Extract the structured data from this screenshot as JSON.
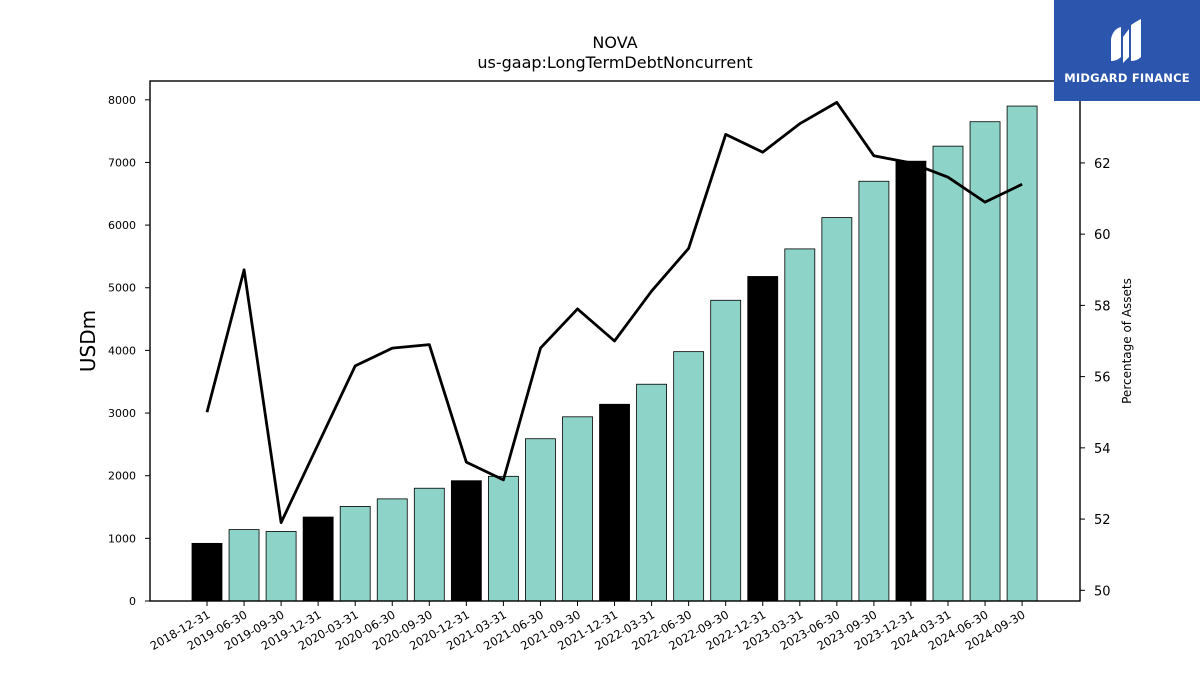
{
  "chart_data": {
    "type": "bar",
    "title": "NOVA",
    "subtitle": "us-gaap:LongTermDebtNoncurrent",
    "ylabel": "USDm",
    "ylabel_right": "Percentage of Assets",
    "ylim": [
      0,
      8300
    ],
    "ylim_right": [
      49.7,
      64.3
    ],
    "yticks": [
      0,
      1000,
      2000,
      3000,
      4000,
      5000,
      6000,
      7000,
      8000
    ],
    "yticks_right": [
      50,
      52,
      54,
      56,
      58,
      60,
      62
    ],
    "categories": [
      "2018-12-31",
      "2019-06-30",
      "2019-09-30",
      "2019-12-31",
      "2020-03-31",
      "2020-06-30",
      "2020-09-30",
      "2020-12-31",
      "2021-03-31",
      "2021-06-30",
      "2021-09-30",
      "2021-12-31",
      "2022-03-31",
      "2022-06-30",
      "2022-09-30",
      "2022-12-31",
      "2023-03-31",
      "2023-06-30",
      "2023-09-30",
      "2023-12-31",
      "2024-03-31",
      "2024-06-30",
      "2024-09-30"
    ],
    "series": [
      {
        "type": "bar",
        "values": [
          920,
          1140,
          1110,
          1340,
          1510,
          1630,
          1800,
          1920,
          1990,
          2590,
          2940,
          3140,
          3460,
          3980,
          4800,
          5180,
          5620,
          6120,
          6700,
          7020,
          7260,
          7650,
          7900
        ],
        "colors": [
          "#000000",
          "#8dd3c7",
          "#8dd3c7",
          "#000000",
          "#8dd3c7",
          "#8dd3c7",
          "#8dd3c7",
          "#000000",
          "#8dd3c7",
          "#8dd3c7",
          "#8dd3c7",
          "#000000",
          "#8dd3c7",
          "#8dd3c7",
          "#8dd3c7",
          "#000000",
          "#8dd3c7",
          "#8dd3c7",
          "#8dd3c7",
          "#000000",
          "#8dd3c7",
          "#8dd3c7",
          "#8dd3c7"
        ]
      },
      {
        "type": "line",
        "axis": "right",
        "color": "#000000",
        "values": [
          55.0,
          59.0,
          51.9,
          54.1,
          56.3,
          56.8,
          56.9,
          53.6,
          53.1,
          56.8,
          57.9,
          57.0,
          58.4,
          59.6,
          62.8,
          62.3,
          63.1,
          63.7,
          62.2,
          62.0,
          61.6,
          60.9,
          61.4
        ]
      }
    ],
    "grid": false
  },
  "logo": {
    "text": "MIDGARD FINANCE",
    "background": "#2c56ad"
  }
}
